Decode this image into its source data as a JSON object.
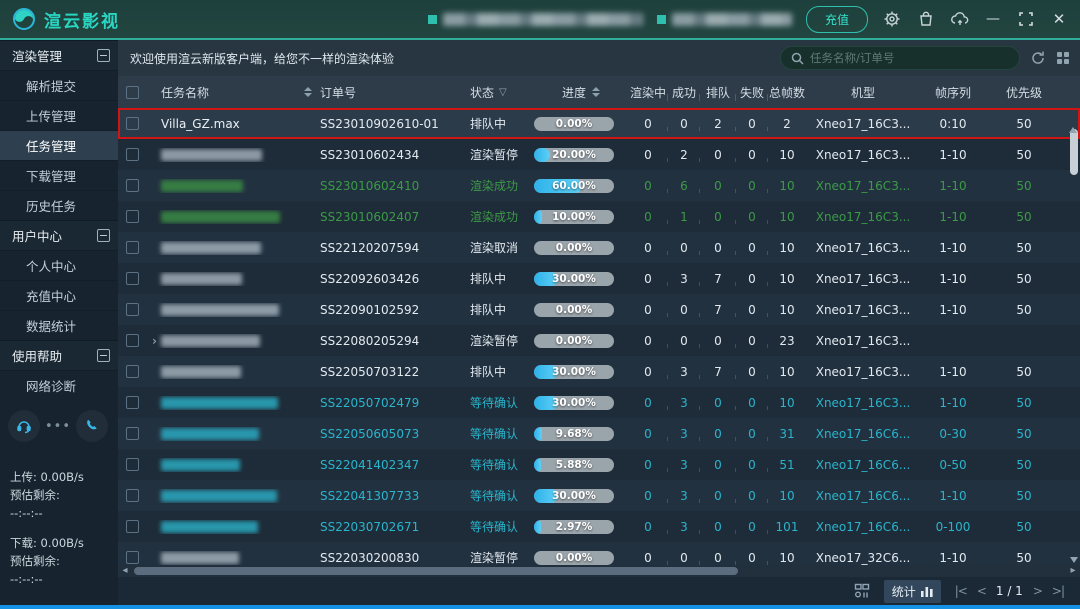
{
  "topbar": {
    "logo_text": "渲云影视",
    "recharge_label": "充值"
  },
  "sidebar": {
    "groups": [
      {
        "label": "渲染管理",
        "items": [
          {
            "label": "解析提交"
          },
          {
            "label": "上传管理"
          },
          {
            "label": "任务管理",
            "selected": true
          },
          {
            "label": "下载管理"
          },
          {
            "label": "历史任务"
          }
        ]
      },
      {
        "label": "用户中心",
        "items": [
          {
            "label": "个人中心"
          },
          {
            "label": "充值中心"
          },
          {
            "label": "数据统计"
          }
        ]
      },
      {
        "label": "使用帮助",
        "items": [
          {
            "label": "网络诊断"
          }
        ]
      }
    ],
    "transfer": {
      "upload_speed": "上传: 0.00B/s",
      "upload_eta_label": "预估剩余:",
      "upload_eta": "--:--:--",
      "download_speed": "下载: 0.00B/s",
      "download_eta_label": "预估剩余:",
      "download_eta": "--:--:--"
    }
  },
  "main": {
    "welcome_text": "欢迎使用渲云新版客户端，给您不一样的渲染体验",
    "search_placeholder": "任务名称/订单号"
  },
  "table": {
    "headers": {
      "name": "任务名称",
      "order": "订单号",
      "status": "状态",
      "progress": "进度",
      "rendering": "渲染中",
      "success": "成功",
      "queued": "排队",
      "failed": "失败",
      "total": "总帧数",
      "machine": "机型",
      "frames": "帧序列",
      "priority": "优先级"
    },
    "rows": [
      {
        "name": "Villa_GZ.max",
        "blurred": false,
        "tone": "white",
        "expand": false,
        "highlighted": true,
        "order": "SS23010902610-01",
        "status": "排队中",
        "progress_label": "0.00%",
        "progress_pct": 0,
        "rendering": "0",
        "success": "0",
        "queued": "2",
        "failed": "0",
        "total": "2",
        "machine": "Xneo17_16C3...",
        "frames": "0:10",
        "priority": "50"
      },
      {
        "name": "",
        "blurred": true,
        "tone": "white",
        "expand": false,
        "highlighted": false,
        "order": "SS23010602434",
        "status": "渲染暂停",
        "progress_label": "20.00%",
        "progress_pct": 20,
        "rendering": "0",
        "success": "2",
        "queued": "0",
        "failed": "0",
        "total": "10",
        "machine": "Xneo17_16C3...",
        "frames": "1-10",
        "priority": "50"
      },
      {
        "name": "",
        "blurred": true,
        "tone": "green",
        "expand": false,
        "highlighted": false,
        "order": "SS23010602410",
        "status": "渲染成功",
        "progress_label": "60.00%",
        "progress_pct": 60,
        "rendering": "0",
        "success": "6",
        "queued": "0",
        "failed": "0",
        "total": "10",
        "machine": "Xneo17_16C3...",
        "frames": "1-10",
        "priority": "50"
      },
      {
        "name": "",
        "blurred": true,
        "tone": "green",
        "expand": false,
        "highlighted": false,
        "order": "SS23010602407",
        "status": "渲染成功",
        "progress_label": "10.00%",
        "progress_pct": 10,
        "rendering": "0",
        "success": "1",
        "queued": "0",
        "failed": "0",
        "total": "10",
        "machine": "Xneo17_16C3...",
        "frames": "1-10",
        "priority": "50"
      },
      {
        "name": "",
        "blurred": true,
        "tone": "white",
        "expand": false,
        "highlighted": false,
        "order": "SS22120207594",
        "status": "渲染取消",
        "progress_label": "0.00%",
        "progress_pct": 0,
        "rendering": "0",
        "success": "0",
        "queued": "0",
        "failed": "0",
        "total": "10",
        "machine": "Xneo17_16C3...",
        "frames": "1-10",
        "priority": "50"
      },
      {
        "name": "",
        "blurred": true,
        "tone": "white",
        "expand": false,
        "highlighted": false,
        "order": "SS22092603426",
        "status": "排队中",
        "progress_label": "30.00%",
        "progress_pct": 30,
        "rendering": "0",
        "success": "3",
        "queued": "7",
        "failed": "0",
        "total": "10",
        "machine": "Xneo17_16C3...",
        "frames": "1-10",
        "priority": "50"
      },
      {
        "name": "",
        "blurred": true,
        "tone": "white",
        "expand": false,
        "highlighted": false,
        "order": "SS22090102592",
        "status": "排队中",
        "progress_label": "0.00%",
        "progress_pct": 0,
        "rendering": "0",
        "success": "0",
        "queued": "7",
        "failed": "0",
        "total": "10",
        "machine": "Xneo17_16C3...",
        "frames": "1-10",
        "priority": "50"
      },
      {
        "name": "",
        "blurred": true,
        "tone": "white",
        "expand": true,
        "highlighted": false,
        "order": "SS22080205294",
        "status": "渲染暂停",
        "progress_label": "0.00%",
        "progress_pct": 0,
        "rendering": "0",
        "success": "0",
        "queued": "0",
        "failed": "0",
        "total": "23",
        "machine": "Xneo17_16C3...",
        "frames": "",
        "priority": ""
      },
      {
        "name": "",
        "blurred": true,
        "tone": "white",
        "expand": false,
        "highlighted": false,
        "order": "SS22050703122",
        "status": "排队中",
        "progress_label": "30.00%",
        "progress_pct": 30,
        "rendering": "0",
        "success": "3",
        "queued": "7",
        "failed": "0",
        "total": "10",
        "machine": "Xneo17_16C3...",
        "frames": "1-10",
        "priority": "50"
      },
      {
        "name": "",
        "blurred": true,
        "tone": "cyan",
        "expand": false,
        "highlighted": false,
        "order": "SS22050702479",
        "status": "等待确认",
        "progress_label": "30.00%",
        "progress_pct": 30,
        "rendering": "0",
        "success": "3",
        "queued": "0",
        "failed": "0",
        "total": "10",
        "machine": "Xneo17_16C3...",
        "frames": "1-10",
        "priority": "50"
      },
      {
        "name": "",
        "blurred": true,
        "tone": "cyan",
        "expand": false,
        "highlighted": false,
        "order": "SS22050605073",
        "status": "等待确认",
        "progress_label": "9.68%",
        "progress_pct": 9.68,
        "rendering": "0",
        "success": "3",
        "queued": "0",
        "failed": "0",
        "total": "31",
        "machine": "Xneo17_16C6...",
        "frames": "0-30",
        "priority": "50"
      },
      {
        "name": "",
        "blurred": true,
        "tone": "cyan",
        "expand": false,
        "highlighted": false,
        "order": "SS22041402347",
        "status": "等待确认",
        "progress_label": "5.88%",
        "progress_pct": 5.88,
        "rendering": "0",
        "success": "3",
        "queued": "0",
        "failed": "0",
        "total": "51",
        "machine": "Xneo17_16C6...",
        "frames": "0-50",
        "priority": "50"
      },
      {
        "name": "",
        "blurred": true,
        "tone": "cyan",
        "expand": false,
        "highlighted": false,
        "order": "SS22041307733",
        "status": "等待确认",
        "progress_label": "30.00%",
        "progress_pct": 30,
        "rendering": "0",
        "success": "3",
        "queued": "0",
        "failed": "0",
        "total": "10",
        "machine": "Xneo17_16C6...",
        "frames": "1-10",
        "priority": "50"
      },
      {
        "name": "",
        "blurred": true,
        "tone": "cyan",
        "expand": false,
        "highlighted": false,
        "order": "SS22030702671",
        "status": "等待确认",
        "progress_label": "2.97%",
        "progress_pct": 2.97,
        "rendering": "0",
        "success": "3",
        "queued": "0",
        "failed": "0",
        "total": "101",
        "machine": "Xneo17_16C6...",
        "frames": "0-100",
        "priority": "50"
      },
      {
        "name": "",
        "blurred": true,
        "tone": "white",
        "expand": false,
        "highlighted": false,
        "order": "SS22030200830",
        "status": "渲染暂停",
        "progress_label": "0.00%",
        "progress_pct": 0,
        "rendering": "0",
        "success": "0",
        "queued": "0",
        "failed": "0",
        "total": "10",
        "machine": "Xneo17_32C6...",
        "frames": "1-10",
        "priority": "50"
      }
    ]
  },
  "footer": {
    "stats_label": "统计",
    "page_text": "1 / 1"
  },
  "colors": {
    "accent_teal": "#28d6c2",
    "highlight_red": "#d01515",
    "status_green": "#3c9a47",
    "status_cyan": "#2ab5cc",
    "progress_fill": "#2eb2e9",
    "bottom_line_blue": "#1592e6"
  }
}
